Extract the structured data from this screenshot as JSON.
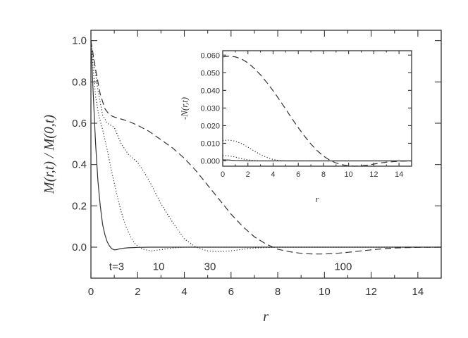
{
  "chart_data": [
    {
      "type": "line",
      "xlabel": "r",
      "ylabel": "M(r,t) / M(0,t)",
      "xlim": [
        0,
        15
      ],
      "ylim": [
        -0.15,
        1.05
      ],
      "xticks": [
        0,
        2,
        4,
        6,
        8,
        10,
        12,
        14
      ],
      "xtick_labels": [
        "0",
        "2",
        "4",
        "6",
        "8",
        "10",
        "12",
        "14"
      ],
      "yticks": [
        0.0,
        0.2,
        0.4,
        0.6,
        0.8,
        1.0
      ],
      "ytick_labels": [
        "0.0",
        "0.2",
        "0.4",
        "0.6",
        "0.8",
        "1.0"
      ],
      "series": [
        {
          "name": "t=3",
          "style": "solid",
          "x": [
            0,
            0.1,
            0.2,
            0.3,
            0.4,
            0.5,
            0.6,
            0.7,
            0.8,
            0.9,
            1.0,
            1.1,
            1.2,
            1.4,
            1.6,
            1.8,
            2.0,
            2.5,
            3,
            15
          ],
          "y": [
            1.0,
            0.74,
            0.5,
            0.32,
            0.2,
            0.11,
            0.06,
            0.025,
            0.005,
            -0.008,
            -0.013,
            -0.012,
            -0.009,
            -0.005,
            -0.003,
            -0.002,
            -0.001,
            0,
            0,
            0
          ]
        },
        {
          "name": "10",
          "style": "dotted",
          "x": [
            0,
            0.1,
            0.2,
            0.35,
            0.5,
            0.7,
            0.9,
            1.1,
            1.3,
            1.5,
            1.7,
            1.9,
            2.1,
            2.3,
            2.6,
            3.0,
            3.5,
            4,
            5,
            15
          ],
          "y": [
            1.0,
            0.86,
            0.73,
            0.63,
            0.57,
            0.47,
            0.36,
            0.26,
            0.17,
            0.1,
            0.05,
            0.015,
            -0.003,
            -0.012,
            -0.018,
            -0.012,
            -0.004,
            0,
            0,
            0
          ]
        },
        {
          "name": "30",
          "style": "dotted",
          "x": [
            0,
            0.1,
            0.2,
            0.3,
            0.5,
            0.7,
            1.0,
            1.3,
            1.6,
            2.0,
            2.3,
            2.6,
            3.0,
            3.5,
            4.0,
            4.5,
            5.0,
            5.5,
            6.0,
            6.5,
            7.0,
            8.0,
            15
          ],
          "y": [
            1.0,
            0.92,
            0.84,
            0.76,
            0.64,
            0.6,
            0.58,
            0.5,
            0.45,
            0.41,
            0.36,
            0.3,
            0.21,
            0.12,
            0.04,
            0.0,
            -0.018,
            -0.022,
            -0.018,
            -0.01,
            -0.004,
            0,
            0
          ]
        },
        {
          "name": "100",
          "style": "dashed",
          "x": [
            0,
            0.1,
            0.2,
            0.4,
            0.6,
            0.8,
            1.0,
            1.3,
            1.6,
            2.0,
            2.5,
            3.0,
            3.5,
            4.0,
            4.5,
            5.0,
            5.5,
            6.0,
            6.5,
            7.0,
            7.5,
            8.0,
            8.5,
            9.0,
            9.5,
            10.0,
            10.5,
            11.0,
            11.5,
            12.0,
            12.5,
            13.0,
            13.5,
            14.0,
            15.0
          ],
          "y": [
            1.0,
            0.93,
            0.86,
            0.74,
            0.67,
            0.64,
            0.63,
            0.62,
            0.61,
            0.59,
            0.56,
            0.52,
            0.48,
            0.43,
            0.37,
            0.3,
            0.23,
            0.16,
            0.1,
            0.05,
            0.015,
            -0.01,
            -0.022,
            -0.03,
            -0.033,
            -0.033,
            -0.03,
            -0.025,
            -0.019,
            -0.013,
            -0.008,
            -0.004,
            -0.002,
            -0.001,
            0
          ]
        }
      ],
      "annotations": [
        {
          "text": "t=3",
          "x": 1.1,
          "y": -0.11
        },
        {
          "text": "10",
          "x": 2.9,
          "y": -0.11
        },
        {
          "text": "30",
          "x": 5.1,
          "y": -0.11
        },
        {
          "text": "100",
          "x": 10.8,
          "y": -0.11
        }
      ]
    },
    {
      "type": "line",
      "inset": true,
      "xlabel": "r",
      "ylabel": "-N(r,t)",
      "xlim": [
        0,
        15
      ],
      "ylim": [
        -0.003,
        0.0625
      ],
      "xticks": [
        0,
        2,
        4,
        6,
        8,
        10,
        12,
        14
      ],
      "xtick_labels": [
        "0",
        "2",
        "4",
        "6",
        "8",
        "10",
        "12",
        "14"
      ],
      "yticks": [
        0.0,
        0.01,
        0.02,
        0.03,
        0.04,
        0.05,
        0.06
      ],
      "ytick_labels": [
        "0.000",
        "0.010",
        "0.020",
        "0.030",
        "0.040",
        "0.050",
        "0.060"
      ],
      "series": [
        {
          "name": "t=3",
          "style": "solid",
          "x": [
            0,
            0.5,
            1,
            2,
            4,
            15
          ],
          "y": [
            0.0006,
            0.0005,
            0.0002,
            0.0,
            0,
            0
          ]
        },
        {
          "name": "10",
          "style": "dotted",
          "x": [
            0,
            0.4,
            0.8,
            1.2,
            1.6,
            2.0,
            2.5,
            3,
            4,
            15
          ],
          "y": [
            0.003,
            0.0029,
            0.0025,
            0.0018,
            0.0011,
            0.0006,
            0.0002,
            0.0,
            0,
            0
          ]
        },
        {
          "name": "30",
          "style": "dotted",
          "x": [
            0,
            0.5,
            1.0,
            1.5,
            2.0,
            2.5,
            3.0,
            3.5,
            4.0,
            4.5,
            5.0,
            6.0,
            15
          ],
          "y": [
            0.0115,
            0.0118,
            0.0112,
            0.0098,
            0.0078,
            0.0056,
            0.0036,
            0.002,
            0.0008,
            0.0002,
            0.0,
            0,
            0
          ]
        },
        {
          "name": "100",
          "style": "dashed",
          "x": [
            0,
            0.5,
            1.0,
            1.5,
            2.0,
            2.5,
            3.0,
            3.5,
            4.0,
            4.5,
            5.0,
            5.5,
            6.0,
            6.5,
            7.0,
            7.5,
            8.0,
            8.5,
            9.0,
            9.5,
            10.0,
            10.5,
            11.0,
            11.5,
            12.0,
            12.5,
            13.0,
            14.0,
            15.0
          ],
          "y": [
            0.059,
            0.0594,
            0.059,
            0.0578,
            0.0556,
            0.0525,
            0.0488,
            0.0445,
            0.0398,
            0.0347,
            0.0294,
            0.024,
            0.0188,
            0.014,
            0.0096,
            0.0058,
            0.0027,
            0.0004,
            -0.0012,
            -0.0022,
            -0.0028,
            -0.003,
            -0.0028,
            -0.0024,
            -0.0018,
            -0.0012,
            -0.0007,
            -0.0002,
            0
          ]
        }
      ]
    }
  ]
}
